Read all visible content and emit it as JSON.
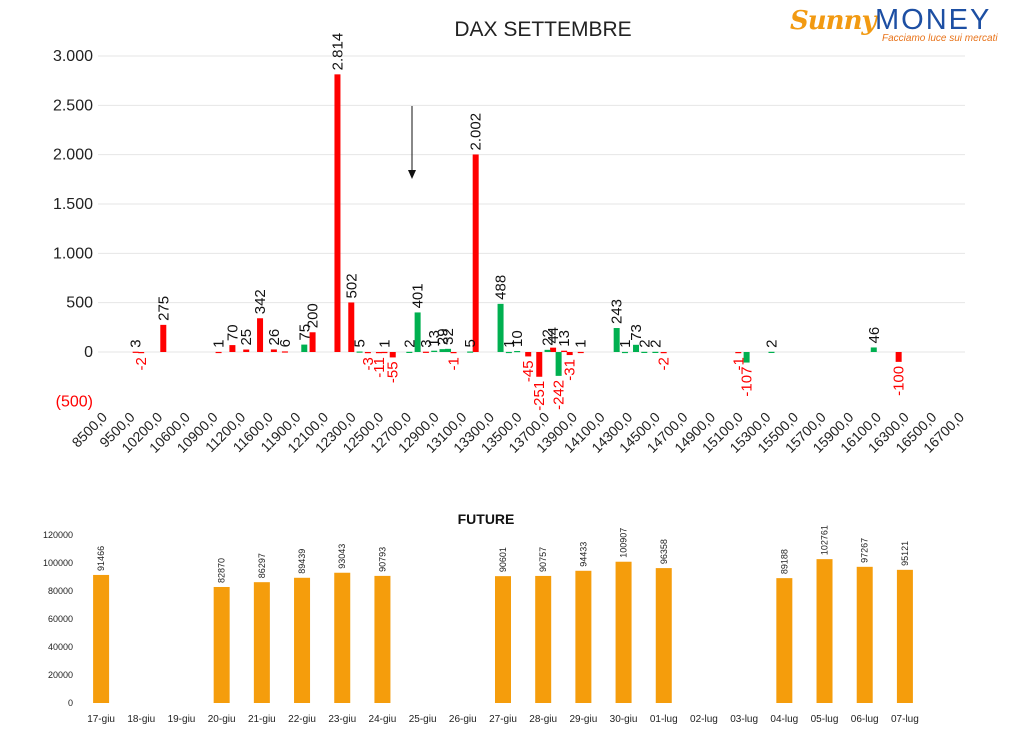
{
  "logo": {
    "brand_a": "Sunny",
    "brand_b": "MONEY",
    "tagline": "Facciamo luce sui mercati"
  },
  "chart_data": [
    {
      "type": "bar",
      "title": "DAX SETTEMBRE",
      "ylim": [
        -500,
        3000
      ],
      "yticks": [
        {
          "value": 3000,
          "label": "3.000"
        },
        {
          "value": 2500,
          "label": "2.500"
        },
        {
          "value": 2000,
          "label": "2.000"
        },
        {
          "value": 1500,
          "label": "1.500"
        },
        {
          "value": 1000,
          "label": "1.000"
        },
        {
          "value": 500,
          "label": "500"
        },
        {
          "value": 0,
          "label": "0"
        },
        {
          "value": -500,
          "label": "(500)"
        }
      ],
      "grid": true,
      "xticks": [
        "8500,0",
        "9500,0",
        "10200,0",
        "10600,0",
        "10900,0",
        "11200,0",
        "11600,0",
        "11900,0",
        "12100,0",
        "12300,0",
        "12500,0",
        "12700,0",
        "12900,0",
        "13100,0",
        "13300,0",
        "13500,0",
        "13700,0",
        "13900,0",
        "14100,0",
        "14300,0",
        "14500,0",
        "14700,0",
        "14900,0",
        "15100,0",
        "15300,0",
        "15500,0",
        "15700,0",
        "15900,0",
        "16100,0",
        "16300,0",
        "16500,0",
        "16700,0"
      ],
      "series": [
        {
          "color": "#ff0000",
          "points": [
            {
              "x": 1,
              "value": 3,
              "label": "3"
            },
            {
              "x": 1.2,
              "value": -2,
              "label": "-2"
            },
            {
              "x": 2,
              "value": 275,
              "label": "275"
            },
            {
              "x": 4,
              "value": 1,
              "label": "1"
            },
            {
              "x": 4.5,
              "value": 70,
              "label": "70"
            },
            {
              "x": 5,
              "value": 25,
              "label": "25"
            },
            {
              "x": 5.5,
              "value": 342,
              "label": "342"
            },
            {
              "x": 6,
              "value": 26,
              "label": "26"
            },
            {
              "x": 6.4,
              "value": 6,
              "label": "6"
            },
            {
              "x": 7.4,
              "value": 200,
              "label": "200"
            },
            {
              "x": 8.3,
              "value": 2814,
              "label": "2.814"
            },
            {
              "x": 8.8,
              "value": 502,
              "label": "502"
            },
            {
              "x": 9.4,
              "value": -3,
              "label": "-3"
            },
            {
              "x": 9.8,
              "value": -11,
              "label": "-11"
            },
            {
              "x": 10,
              "value": 1,
              "label": "1"
            },
            {
              "x": 10.3,
              "value": -55,
              "label": "-55"
            },
            {
              "x": 11.5,
              "value": 3,
              "label": "3"
            },
            {
              "x": 12.5,
              "value": -1,
              "label": "-1"
            },
            {
              "x": 13.3,
              "value": 2002,
              "label": "2.002"
            },
            {
              "x": 15.2,
              "value": -45,
              "label": "-45"
            },
            {
              "x": 15.6,
              "value": -251,
              "label": "-251"
            },
            {
              "x": 16.1,
              "value": 44,
              "label": "44"
            },
            {
              "x": 16.5,
              "value": 13,
              "label": "13"
            },
            {
              "x": 16.7,
              "value": -31,
              "label": "-31"
            },
            {
              "x": 17.1,
              "value": 1,
              "label": "1"
            },
            {
              "x": 20.1,
              "value": -2,
              "label": "-2"
            },
            {
              "x": 22.8,
              "value": -1,
              "label": "-1"
            },
            {
              "x": 28.6,
              "value": -100,
              "label": "-100"
            }
          ]
        },
        {
          "color": "#00b050",
          "points": [
            {
              "x": 7.1,
              "value": 75,
              "label": "75"
            },
            {
              "x": 9.1,
              "value": 5,
              "label": "5"
            },
            {
              "x": 10.9,
              "value": 2,
              "label": "2"
            },
            {
              "x": 11.2,
              "value": 401,
              "label": "401"
            },
            {
              "x": 11.8,
              "value": 13,
              "label": "13"
            },
            {
              "x": 12.1,
              "value": 29,
              "label": "29"
            },
            {
              "x": 12.3,
              "value": 32,
              "label": "32"
            },
            {
              "x": 13.1,
              "value": 5,
              "label": "5"
            },
            {
              "x": 14.2,
              "value": 488,
              "label": "488"
            },
            {
              "x": 14.5,
              "value": 1,
              "label": "1"
            },
            {
              "x": 14.8,
              "value": 10,
              "label": "10"
            },
            {
              "x": 15.9,
              "value": 22,
              "label": "22"
            },
            {
              "x": 16.3,
              "value": -242,
              "label": "-242"
            },
            {
              "x": 18.4,
              "value": 243,
              "label": "243"
            },
            {
              "x": 18.7,
              "value": 1,
              "label": "1"
            },
            {
              "x": 19.1,
              "value": 73,
              "label": "73"
            },
            {
              "x": 19.4,
              "value": 2,
              "label": "2"
            },
            {
              "x": 19.8,
              "value": 2,
              "label": "2"
            },
            {
              "x": 23.1,
              "value": -107,
              "label": "-107"
            },
            {
              "x": 24.0,
              "value": 2,
              "label": "2"
            },
            {
              "x": 27.7,
              "value": 46,
              "label": "46"
            }
          ]
        }
      ]
    },
    {
      "type": "bar",
      "title": "FUTURE",
      "ylim": [
        0,
        120000
      ],
      "yticks": [
        "0",
        "20000",
        "40000",
        "60000",
        "80000",
        "100000",
        "120000"
      ],
      "grid": false,
      "color": "#f59d0c",
      "categories": [
        "17-giu",
        "18-giu",
        "19-giu",
        "20-giu",
        "21-giu",
        "22-giu",
        "23-giu",
        "24-giu",
        "25-giu",
        "26-giu",
        "27-giu",
        "28-giu",
        "29-giu",
        "30-giu",
        "01-lug",
        "02-lug",
        "03-lug",
        "04-lug",
        "05-lug",
        "06-lug",
        "07-lug"
      ],
      "values": [
        91466,
        null,
        null,
        82870,
        86297,
        89439,
        93043,
        90793,
        null,
        null,
        90601,
        90757,
        94433,
        100907,
        96358,
        null,
        null,
        89188,
        102761,
        97267,
        95121
      ],
      "labels": [
        "91466",
        "",
        "",
        "82870",
        "86297",
        "89439",
        "93043",
        "90793",
        "",
        "",
        "90601",
        "90757",
        "94433",
        "100907",
        "96358",
        "",
        "",
        "89188",
        "102761",
        "97267",
        "95121"
      ]
    }
  ]
}
